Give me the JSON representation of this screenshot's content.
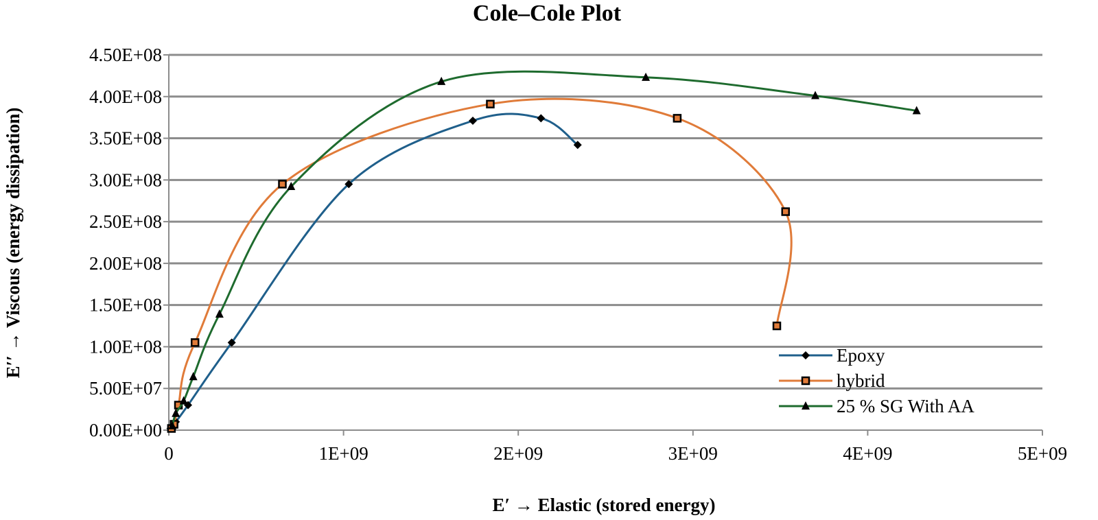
{
  "chart_data": {
    "type": "scatter",
    "title": "Cole–Cole Plot",
    "xlabel": "E′ → Elastic (stored energy)",
    "ylabel": "E′′ → Viscous (energy dissipation)",
    "xlim": [
      0,
      5000000000
    ],
    "ylim": [
      0,
      450000000
    ],
    "x_ticks": [
      0,
      1000000000,
      2000000000,
      3000000000,
      4000000000,
      5000000000
    ],
    "x_tick_labels": [
      "0",
      "1E+09",
      "2E+09",
      "3E+09",
      "4E+09",
      "5E+09"
    ],
    "y_ticks": [
      0,
      50000000,
      100000000,
      150000000,
      200000000,
      250000000,
      300000000,
      350000000,
      400000000,
      450000000
    ],
    "y_tick_labels": [
      "0.00E+00",
      "5.00E+07",
      "1.00E+08",
      "1.50E+08",
      "2.00E+08",
      "2.50E+08",
      "3.00E+08",
      "3.50E+08",
      "4.00E+08",
      "4.50E+08"
    ],
    "grid": true,
    "legend_position": "bottom-right",
    "series": [
      {
        "name": "Epoxy",
        "color": "#1f5f8b",
        "marker": "diamond",
        "x": [
          10000000,
          20000000,
          40000000,
          110000000,
          360000000,
          1030000000,
          1740000000,
          2130000000,
          2340000000
        ],
        "y": [
          2000000,
          5000000,
          10000000,
          30000000,
          105000000,
          295000000,
          371000000,
          374000000,
          342000000
        ]
      },
      {
        "name": "hybrid",
        "color": "#e07b39",
        "marker": "square",
        "x": [
          15000000,
          30000000,
          55000000,
          150000000,
          650000000,
          1840000000,
          2910000000,
          3530000000,
          3480000000
        ],
        "y": [
          2000000,
          7000000,
          30000000,
          105000000,
          295000000,
          391000000,
          374000000,
          262000000,
          125000000
        ]
      },
      {
        "name": "25 % SG With AA",
        "color": "#1e6b2e",
        "marker": "triangle",
        "x": [
          20000000,
          40000000,
          85000000,
          140000000,
          290000000,
          700000000,
          1560000000,
          2730000000,
          3700000000,
          4280000000
        ],
        "y": [
          5000000,
          20000000,
          35000000,
          64000000,
          139000000,
          292000000,
          418000000,
          423000000,
          401000000,
          383000000
        ]
      }
    ]
  }
}
